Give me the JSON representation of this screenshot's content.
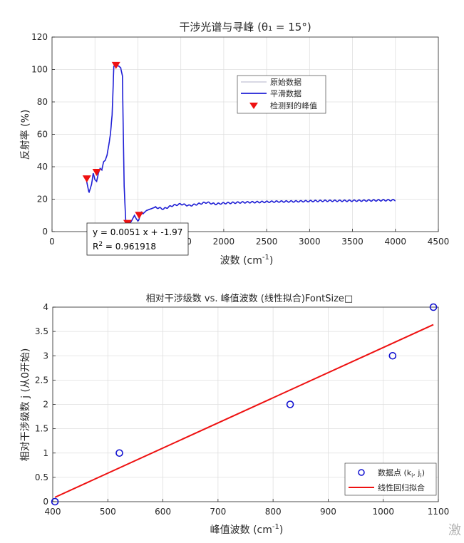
{
  "chart_data": [
    {
      "type": "line",
      "title": "干涉光谱与寻峰 (θ₁ = 15°)",
      "xlabel": "波数 (cm",
      "xlabel_sup": "-1",
      "xlabel_end": ")",
      "ylabel": "反射率 (%)",
      "xlim": [
        0,
        4500
      ],
      "ylim": [
        0,
        120
      ],
      "xticks": [
        0,
        500,
        1000,
        1500,
        2000,
        2500,
        3000,
        3500,
        4000,
        4500
      ],
      "yticks": [
        0,
        20,
        40,
        60,
        80,
        100,
        120
      ],
      "grid": true,
      "legend_placement": "upper-middle-right",
      "legend": [
        "原始数据",
        "平滑数据",
        "检测到的峰值"
      ],
      "series_colors": {
        "raw": "#b0b0c8",
        "smooth": "#1f1fd6",
        "peaks": "#ee1111"
      },
      "spectrum_keypoints": {
        "x": [
          400,
          430,
          460,
          480,
          500,
          520,
          540,
          560,
          580,
          600,
          620,
          640,
          660,
          680,
          700,
          720,
          740,
          760,
          780,
          800,
          820,
          840,
          860,
          880,
          900,
          920,
          940,
          960,
          980,
          1000,
          1010,
          1025,
          1040,
          1060,
          1080,
          1100,
          1150,
          1200,
          1300,
          1400,
          1500,
          1600,
          1700,
          1800,
          1900,
          2000,
          2200,
          2400,
          2600,
          2800,
          3000,
          3200,
          3400,
          3600,
          3800,
          4000
        ],
        "y": [
          32,
          24,
          29,
          36,
          32,
          31,
          36,
          39,
          38,
          43,
          44,
          47,
          53,
          60,
          72,
          102,
          103,
          102.5,
          102,
          101,
          96,
          28,
          5,
          5,
          5,
          6,
          8,
          10,
          8,
          6.5,
          7,
          10,
          12,
          11,
          12,
          13,
          14,
          15,
          14,
          16,
          17,
          16,
          17,
          18,
          17,
          17.5,
          18,
          18.2,
          18.5,
          18.6,
          18.8,
          19,
          19,
          19.1,
          19.3,
          19.4
        ]
      },
      "peaks": {
        "x": [
          405,
          520,
          745,
          880,
          1015
        ],
        "y": [
          32.5,
          36.5,
          102.5,
          5,
          10
        ]
      },
      "annotation": {
        "line1": "y = 0.0051 x + -1.97",
        "line2_prefix": "R",
        "line2_sup": "2",
        "line2_value": " = 0.961918"
      }
    },
    {
      "type": "scatter",
      "title": "相对干涉级数 vs. 峰值波数 (线性拟合)FontSize□",
      "xlabel": "峰值波数 (cm",
      "xlabel_sup": "-1",
      "xlabel_end": ")",
      "ylabel": "相对干涉级数 j (从0开始)",
      "xlim": [
        400,
        1100
      ],
      "ylim": [
        0,
        4
      ],
      "xticks": [
        400,
        500,
        600,
        700,
        800,
        900,
        1000,
        1100
      ],
      "yticks": [
        0,
        0.5,
        1,
        1.5,
        2,
        2.5,
        3,
        3.5,
        4
      ],
      "ytick_labels": [
        "0",
        "0.5",
        "1",
        "1.5",
        "2",
        "2.5",
        "3",
        "3.5",
        "4"
      ],
      "grid": true,
      "legend_placement": "bottom-right",
      "legend": [
        "数据点 (k",
        "线性回归拟合"
      ],
      "legend_sub": [
        "i",
        "i"
      ],
      "legend_points_mid": ", j",
      "legend_points_end": ")",
      "points": {
        "x": [
          404,
          521,
          831,
          1017,
          1091
        ],
        "y": [
          0,
          1,
          2,
          3,
          4
        ]
      },
      "fit": {
        "x": [
          404,
          1091
        ],
        "y": [
          0.09,
          3.64
        ]
      },
      "series_colors": {
        "points": "#1010d0",
        "fit": "#ee1111"
      }
    }
  ],
  "watermark": "激"
}
